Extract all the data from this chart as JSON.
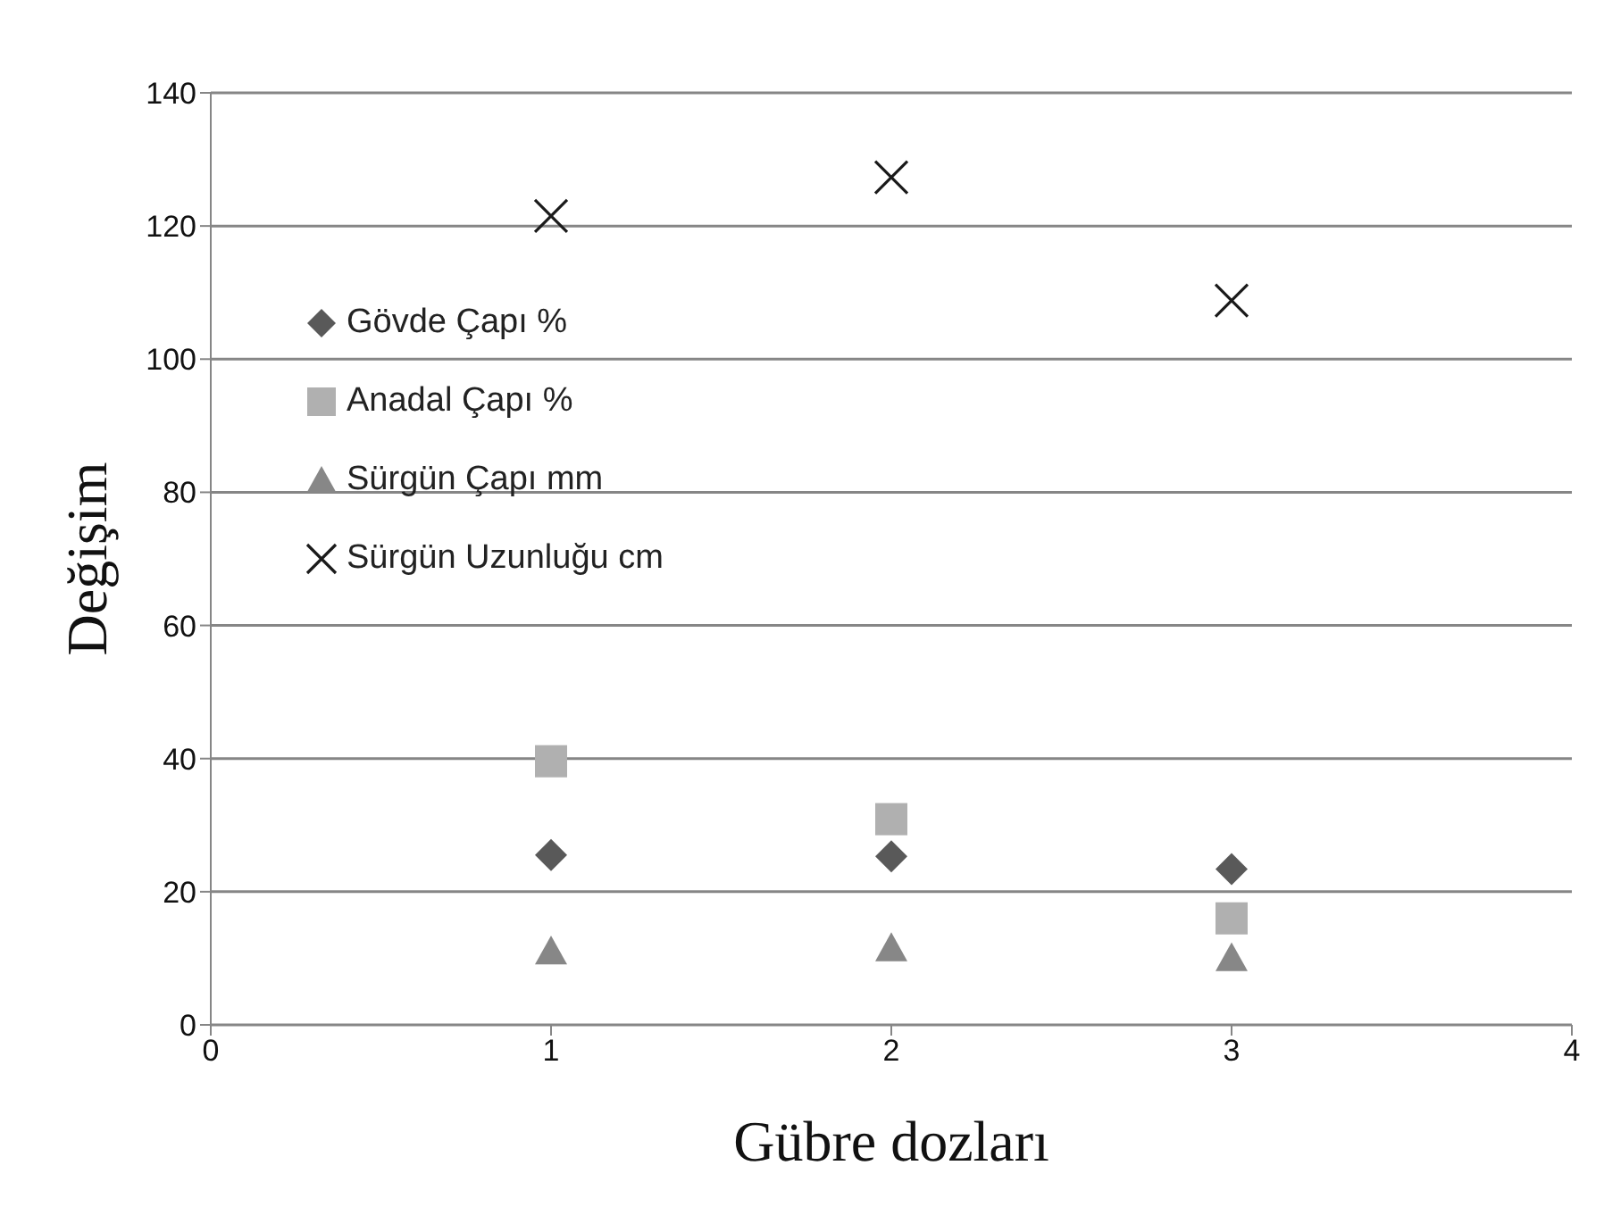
{
  "chart_data": {
    "type": "scatter",
    "xlabel": "Gübre dozları",
    "ylabel": "Değişim",
    "x": [
      1,
      2,
      3
    ],
    "series": [
      {
        "name": "Gövde Çapı %",
        "color": "#595959",
        "marker": "diamond",
        "values": [
          25.5,
          25.3,
          23.4
        ]
      },
      {
        "name": "Anadal Çapı %",
        "color": "#b0b0b0",
        "marker": "square",
        "values": [
          39.6,
          30.9,
          16
        ]
      },
      {
        "name": "Sürgün Çapı mm",
        "color": "#878787",
        "marker": "triangle",
        "values": [
          11,
          11.5,
          10
        ]
      },
      {
        "name": "Sürgün Uzunluğu cm",
        "color": "#1a1a1a",
        "marker": "cross",
        "values": [
          121.5,
          127.3,
          108.8
        ]
      }
    ],
    "xlim": [
      0,
      4
    ],
    "xticks": [
      0,
      1,
      2,
      3,
      4
    ],
    "ylim": [
      0,
      140
    ],
    "yticks": [
      0,
      20,
      40,
      60,
      80,
      100,
      120,
      140
    ],
    "grid": "y",
    "legend": "left"
  }
}
